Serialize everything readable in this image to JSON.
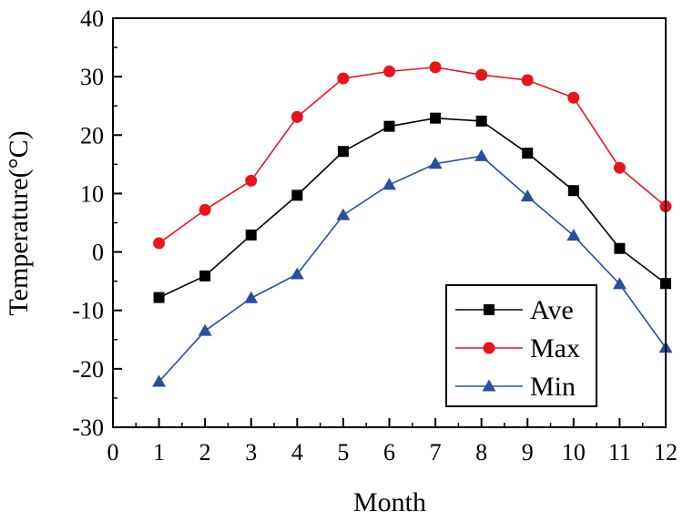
{
  "chart_data": {
    "type": "line",
    "title": "",
    "xlabel": "Month",
    "ylabel": "Temperature(°C)",
    "xlim": [
      0,
      12
    ],
    "ylim": [
      -30,
      40
    ],
    "xticks": [
      0,
      1,
      2,
      3,
      4,
      5,
      6,
      7,
      8,
      9,
      10,
      11,
      12
    ],
    "yticks": [
      -30,
      -20,
      -10,
      0,
      10,
      20,
      30,
      40
    ],
    "x": [
      1,
      2,
      3,
      4,
      5,
      6,
      7,
      8,
      9,
      10,
      11,
      12
    ],
    "series": [
      {
        "name": "Ave",
        "color": "#000000",
        "marker": "square",
        "values": [
          -7.8,
          -4.1,
          2.9,
          9.7,
          17.2,
          21.5,
          22.9,
          22.4,
          16.9,
          10.5,
          0.6,
          -5.4
        ]
      },
      {
        "name": "Max",
        "color": "#e8141c",
        "marker": "circle",
        "values": [
          1.5,
          7.2,
          12.2,
          23.1,
          29.7,
          30.9,
          31.6,
          30.3,
          29.4,
          26.4,
          14.4,
          7.8
        ]
      },
      {
        "name": "Min",
        "color": "#2a4ea0",
        "marker": "triangle",
        "values": [
          -22.2,
          -13.5,
          -7.9,
          -3.8,
          6.3,
          11.5,
          15.1,
          16.4,
          9.5,
          2.8,
          -5.5,
          -16.4
        ]
      }
    ],
    "legend": {
      "position": "bottom-right",
      "entries": [
        "Ave",
        "Max",
        "Min"
      ]
    },
    "grid": false
  }
}
